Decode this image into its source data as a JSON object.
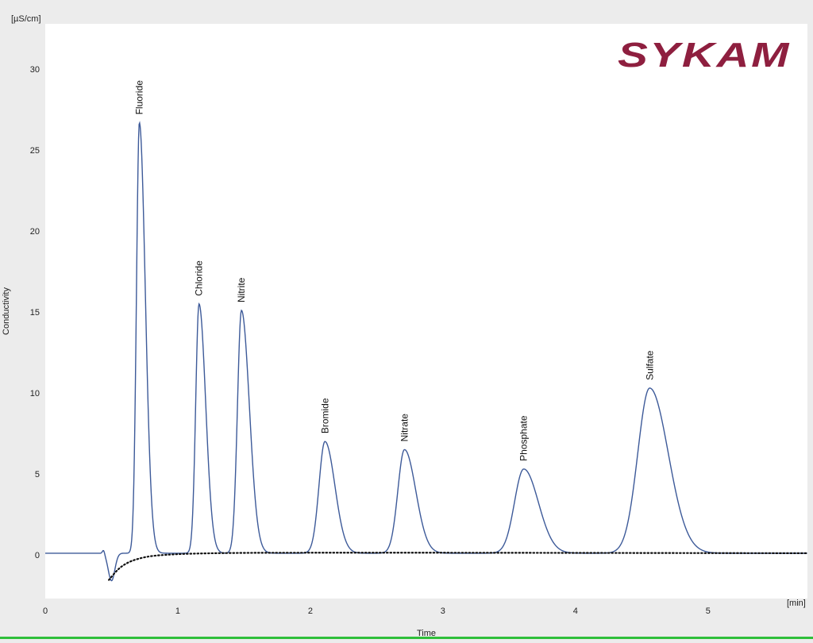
{
  "logo": {
    "text": "SYKAM",
    "color": "#8e1f3f"
  },
  "chart_data": {
    "type": "line",
    "xlabel": "Time",
    "ylabel": "Conductivity",
    "x_unit": "[min]",
    "y_unit": "[µS/cm]",
    "xlim": [
      0,
      5.75
    ],
    "ylim": [
      -2.7,
      32.8
    ],
    "x_ticks": [
      0,
      1,
      2,
      3,
      4,
      5
    ],
    "y_ticks": [
      0,
      5,
      10,
      15,
      20,
      25,
      30
    ],
    "grid": false,
    "line_color": "#3d5a99",
    "baseline_color": "#111111",
    "peaks": [
      {
        "name": "Fluoride",
        "time": 0.71,
        "height": 26.6,
        "width_left": 0.022,
        "width_right": 0.045
      },
      {
        "name": "Chloride",
        "time": 1.16,
        "height": 15.4,
        "width_left": 0.025,
        "width_right": 0.05
      },
      {
        "name": "Nitrite",
        "time": 1.48,
        "height": 15.0,
        "width_left": 0.03,
        "width_right": 0.06
      },
      {
        "name": "Bromide",
        "time": 2.11,
        "height": 6.9,
        "width_left": 0.045,
        "width_right": 0.075
      },
      {
        "name": "Nitrate",
        "time": 2.71,
        "height": 6.4,
        "width_left": 0.05,
        "width_right": 0.085
      },
      {
        "name": "Phosphate",
        "time": 3.61,
        "height": 5.2,
        "width_left": 0.07,
        "width_right": 0.11
      },
      {
        "name": "Sulfate",
        "time": 4.56,
        "height": 10.2,
        "width_left": 0.09,
        "width_right": 0.14
      }
    ],
    "series": [
      {
        "name": "Chromatogram",
        "x": [
          0,
          0.4,
          0.44,
          0.47,
          0.5,
          0.55,
          0.6,
          0.63,
          0.66,
          0.68,
          0.7,
          0.71,
          0.73,
          0.75,
          0.78,
          0.82,
          0.9,
          1.0,
          1.08,
          1.12,
          1.14,
          1.16,
          1.18,
          1.22,
          1.26,
          1.3,
          1.38,
          1.43,
          1.46,
          1.48,
          1.51,
          1.56,
          1.62,
          1.7,
          1.85,
          2.0,
          2.06,
          2.09,
          2.11,
          2.14,
          2.2,
          2.28,
          2.4,
          2.6,
          2.66,
          2.69,
          2.71,
          2.75,
          2.82,
          2.92,
          3.1,
          3.4,
          3.52,
          3.58,
          3.61,
          3.66,
          3.76,
          3.9,
          4.15,
          4.3,
          4.42,
          4.51,
          4.56,
          4.62,
          4.75,
          4.95,
          5.2,
          5.75
        ],
        "y": [
          0.1,
          0.15,
          0.3,
          -0.5,
          -1.4,
          -0.6,
          -0.1,
          0.2,
          3.0,
          12.0,
          24.5,
          26.6,
          15.0,
          4.0,
          1.2,
          0.5,
          0.25,
          0.15,
          0.2,
          3.0,
          11.0,
          15.4,
          10.0,
          1.5,
          0.4,
          0.25,
          0.2,
          4.0,
          12.5,
          15.0,
          11.0,
          3.0,
          0.8,
          0.3,
          0.2,
          0.25,
          3.0,
          6.3,
          6.9,
          5.5,
          2.0,
          0.5,
          0.2,
          0.15,
          2.8,
          5.8,
          6.4,
          5.0,
          1.8,
          0.4,
          0.15,
          0.15,
          2.5,
          4.8,
          5.2,
          4.2,
          1.6,
          0.4,
          0.15,
          0.2,
          4.5,
          9.6,
          10.2,
          8.8,
          3.2,
          0.6,
          0.2,
          0.15
        ]
      },
      {
        "name": "Baseline",
        "x": [
          0.48,
          0.55,
          0.62,
          0.7,
          0.8,
          0.95,
          1.15,
          1.5,
          2.0,
          3.0,
          4.0,
          5.75
        ],
        "y": [
          -1.55,
          -0.9,
          -0.5,
          -0.25,
          -0.08,
          0.02,
          0.08,
          0.12,
          0.13,
          0.13,
          0.12,
          0.1
        ]
      }
    ]
  }
}
